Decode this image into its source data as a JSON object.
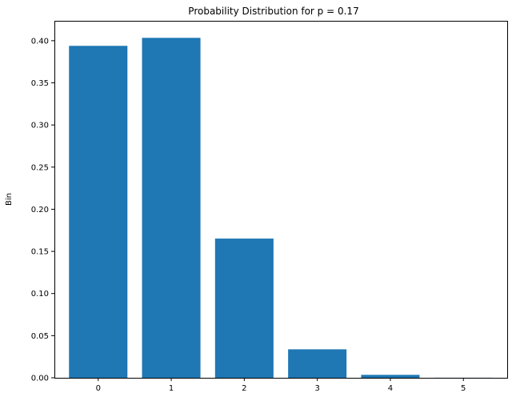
{
  "chart_data": {
    "type": "bar",
    "title": "Probability Distribution for p = 0.17",
    "xlabel": "",
    "ylabel": "Bin",
    "categories": [
      "0",
      "1",
      "2",
      "3",
      "4",
      "5"
    ],
    "values": [
      0.3939,
      0.4034,
      0.1652,
      0.0338,
      0.0035,
      0.0001
    ],
    "xlim": [
      -0.6,
      5.6
    ],
    "ylim": [
      0.0,
      0.4236
    ],
    "yticks": [
      "0.00",
      "0.05",
      "0.10",
      "0.15",
      "0.20",
      "0.25",
      "0.30",
      "0.35",
      "0.40"
    ],
    "grid": false,
    "bar_color": "#1f77b4"
  }
}
